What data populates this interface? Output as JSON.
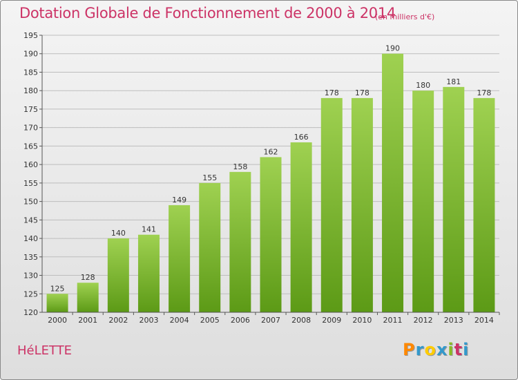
{
  "title": "Dotation Globale de Fonctionnement de 2000 à 2014",
  "unit": "(en milliers d'€)",
  "place": "HéLETTE",
  "logo": {
    "text": "Proxiti",
    "colors": [
      "#ff8800",
      "#3399cc",
      "#ffcc00",
      "#3399cc",
      "#88bb22",
      "#cc3366",
      "#3399cc"
    ]
  },
  "colors": {
    "bar_top": "#9fd151",
    "bar_bottom": "#5c9a16",
    "title": "#cc3366"
  },
  "chart_data": {
    "type": "bar",
    "title": "Dotation Globale de Fonctionnement de 2000 à 2014",
    "xlabel": "",
    "ylabel": "",
    "ylim": [
      120,
      195
    ],
    "yticks": [
      120,
      125,
      130,
      135,
      140,
      145,
      150,
      155,
      160,
      165,
      170,
      175,
      180,
      185,
      190,
      195
    ],
    "categories": [
      "2000",
      "2001",
      "2002",
      "2003",
      "2004",
      "2005",
      "2006",
      "2007",
      "2008",
      "2009",
      "2010",
      "2011",
      "2012",
      "2013",
      "2014"
    ],
    "values": [
      125,
      128,
      140,
      141,
      149,
      155,
      158,
      162,
      166,
      178,
      178,
      190,
      180,
      181,
      178
    ],
    "grid": true
  }
}
